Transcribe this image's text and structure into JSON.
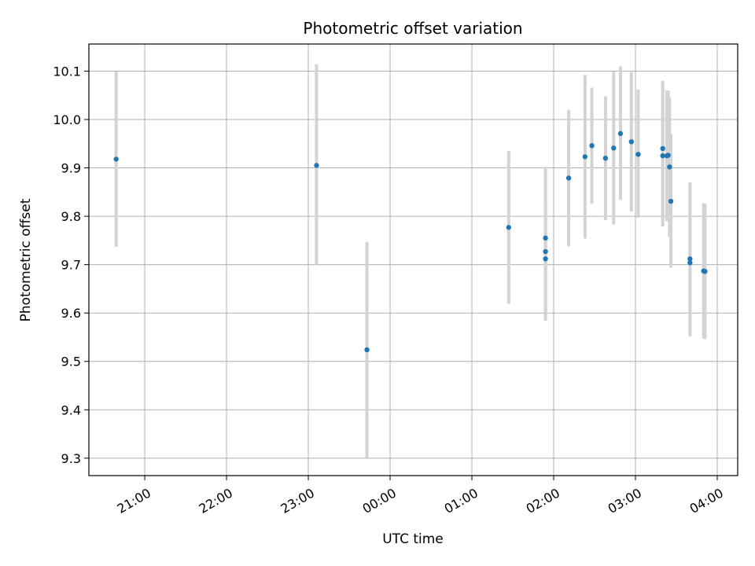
{
  "chart_data": {
    "type": "scatter",
    "title": "Photometric offset variation",
    "xlabel": "UTC time",
    "ylabel": "Photometric offset",
    "x_ticks": [
      "21:00",
      "22:00",
      "23:00",
      "00:00",
      "01:00",
      "02:00",
      "03:00",
      "04:00"
    ],
    "y_ticks": [
      "9.3",
      "9.4",
      "9.5",
      "9.6",
      "9.7",
      "9.8",
      "9.9",
      "10.0",
      "10.1"
    ],
    "xlim": [
      "20:19",
      "04:15"
    ],
    "ylim": [
      9.264,
      10.156
    ],
    "grid": true,
    "marker_color": "#1f77b4",
    "errorbar_color": "#d3d3d3",
    "points": [
      {
        "x": "20:39",
        "y": 9.918,
        "ylo": 9.737,
        "yhi": 10.099
      },
      {
        "x": "23:06",
        "y": 9.905,
        "ylo": 9.7,
        "yhi": 10.114
      },
      {
        "x": "23:43",
        "y": 9.524,
        "ylo": 9.301,
        "yhi": 9.747
      },
      {
        "x": "01:27",
        "y": 9.777,
        "ylo": 9.619,
        "yhi": 9.935
      },
      {
        "x": "01:54",
        "y": 9.755,
        "ylo": 9.608,
        "yhi": 9.902
      },
      {
        "x": "01:54",
        "y": 9.727,
        "ylo": 9.594,
        "yhi": 9.86
      },
      {
        "x": "01:54",
        "y": 9.712,
        "ylo": 9.584,
        "yhi": 9.84
      },
      {
        "x": "02:11",
        "y": 9.879,
        "ylo": 9.738,
        "yhi": 10.02
      },
      {
        "x": "02:23",
        "y": 9.923,
        "ylo": 9.754,
        "yhi": 10.092
      },
      {
        "x": "02:28",
        "y": 9.946,
        "ylo": 9.826,
        "yhi": 10.066
      },
      {
        "x": "02:38",
        "y": 9.92,
        "ylo": 9.792,
        "yhi": 10.048
      },
      {
        "x": "02:44",
        "y": 9.941,
        "ylo": 9.783,
        "yhi": 10.099
      },
      {
        "x": "02:49",
        "y": 9.971,
        "ylo": 9.834,
        "yhi": 10.11
      },
      {
        "x": "02:57",
        "y": 9.954,
        "ylo": 9.81,
        "yhi": 10.098
      },
      {
        "x": "03:02",
        "y": 9.928,
        "ylo": 9.797,
        "yhi": 10.062
      },
      {
        "x": "03:20",
        "y": 9.94,
        "ylo": 9.8,
        "yhi": 10.08
      },
      {
        "x": "03:20",
        "y": 9.925,
        "ylo": 9.779,
        "yhi": 10.071
      },
      {
        "x": "03:23",
        "y": 9.925,
        "ylo": 9.79,
        "yhi": 10.06
      },
      {
        "x": "03:24",
        "y": 9.926,
        "ylo": 9.792,
        "yhi": 10.06
      },
      {
        "x": "03:25",
        "y": 9.902,
        "ylo": 9.758,
        "yhi": 10.046
      },
      {
        "x": "03:26",
        "y": 9.831,
        "ylo": 9.694,
        "yhi": 9.97
      },
      {
        "x": "03:40",
        "y": 9.712,
        "ylo": 9.552,
        "yhi": 9.87
      },
      {
        "x": "03:40",
        "y": 9.704,
        "ylo": 9.555,
        "yhi": 9.855
      },
      {
        "x": "03:50",
        "y": 9.687,
        "ylo": 9.547,
        "yhi": 9.827
      },
      {
        "x": "03:51",
        "y": 9.686,
        "ylo": 9.546,
        "yhi": 9.826
      }
    ]
  }
}
